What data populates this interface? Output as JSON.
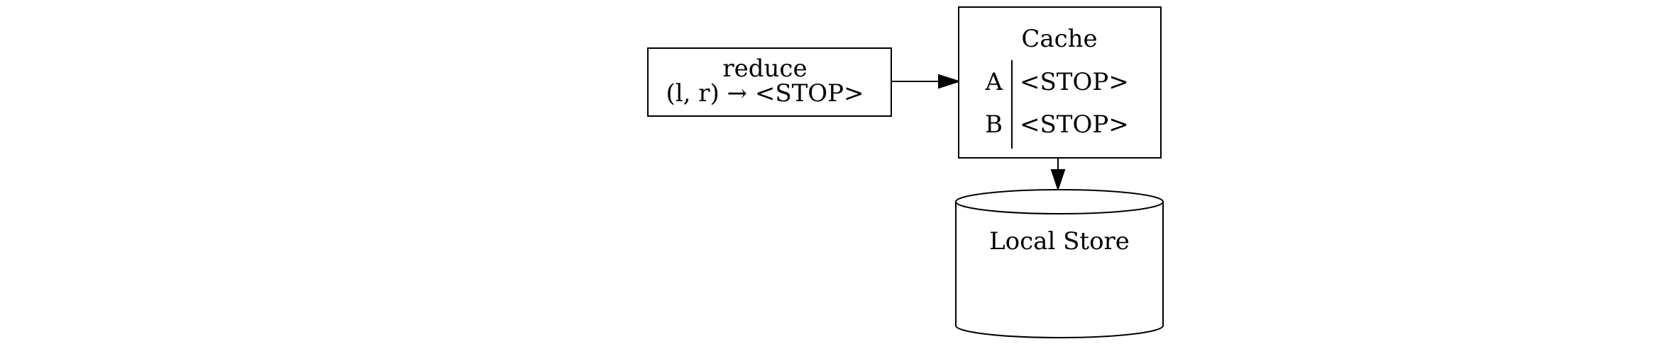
{
  "nodes": {
    "reduce": {
      "title": "reduce",
      "signature": "(l, r) → <STOP>"
    },
    "cache": {
      "title": "Cache",
      "rows": [
        {
          "key": "A",
          "value": "<STOP>"
        },
        {
          "key": "B",
          "value": "<STOP>"
        }
      ]
    },
    "local_store": {
      "title": "Local Store"
    }
  },
  "edges": [
    {
      "from": "reduce",
      "to": "cache"
    },
    {
      "from": "cache",
      "to": "local_store"
    }
  ]
}
